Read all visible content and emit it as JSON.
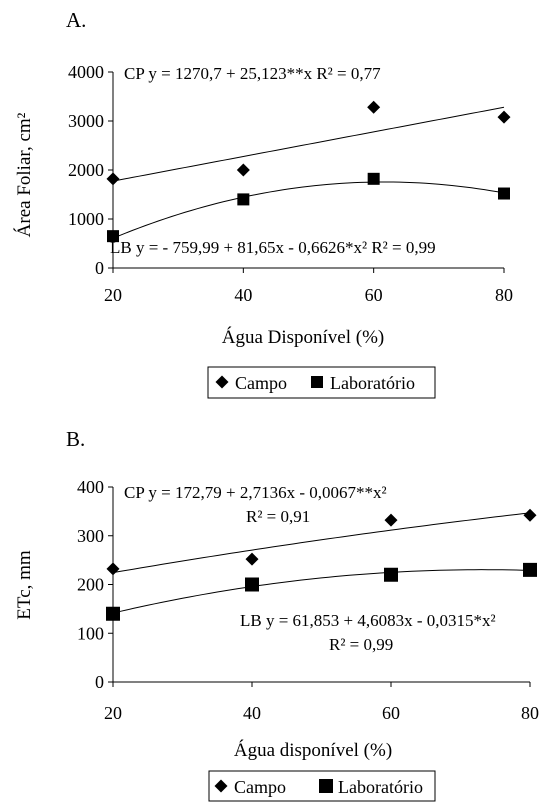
{
  "chart_data": [
    {
      "type": "scatter",
      "panel_label": "A.",
      "ylabel": "Área Foliar, cm²",
      "xlabel": "Água Disponível (%)",
      "xlim": [
        20,
        80
      ],
      "ylim": [
        0,
        4000
      ],
      "xticks": [
        "20",
        "40",
        "60",
        "80"
      ],
      "yticks": [
        "0",
        "1000",
        "2000",
        "3000",
        "4000"
      ],
      "grid": false,
      "legend_placement": "bottom",
      "series": [
        {
          "name": "Campo",
          "marker": "diamond",
          "x": [
            20,
            40,
            60,
            80
          ],
          "y": [
            1820,
            2000,
            3280,
            3080
          ],
          "fit": {
            "type": "linear",
            "coef": [
              1270.7,
              25.123
            ]
          },
          "equation": "CP y = 1270,7 + 25,123**x  R² = 0,77"
        },
        {
          "name": "Laboratório",
          "marker": "square",
          "x": [
            20,
            40,
            60,
            80
          ],
          "y": [
            650,
            1400,
            1820,
            1520
          ],
          "fit": {
            "type": "quadratic",
            "coef": [
              -759.99,
              81.65,
              -0.6626
            ]
          },
          "equation": "LB  y = - 759,99 + 81,65x - 0,6626*x²  R² = 0,99"
        }
      ]
    },
    {
      "type": "scatter",
      "panel_label": "B.",
      "ylabel": "ETc, mm",
      "xlabel": "Água disponível (%)",
      "xlim": [
        20,
        80
      ],
      "ylim": [
        0,
        400
      ],
      "xticks": [
        "20",
        "40",
        "60",
        "80"
      ],
      "yticks": [
        "0",
        "100",
        "200",
        "300",
        "400"
      ],
      "grid": false,
      "legend_placement": "bottom",
      "series": [
        {
          "name": "Campo",
          "marker": "diamond",
          "x": [
            20,
            40,
            60,
            80
          ],
          "y": [
            232,
            252,
            332,
            342
          ],
          "fit": {
            "type": "quadratic",
            "coef": [
              172.79,
              2.7136,
              -0.0067
            ]
          },
          "equation": "CP y = 172,79 + 2,7136x - 0,0067**x²",
          "r2": "R² = 0,91"
        },
        {
          "name": "Laboratório",
          "marker": "square",
          "x": [
            20,
            40,
            60,
            80
          ],
          "y": [
            140,
            200,
            220,
            230
          ],
          "fit": {
            "type": "quadratic",
            "coef": [
              61.853,
              4.6083,
              -0.0315
            ]
          },
          "equation": "LB y =  61,853 + 4,6083x - 0,0315*x²",
          "r2": "R² = 0,99"
        }
      ]
    }
  ]
}
